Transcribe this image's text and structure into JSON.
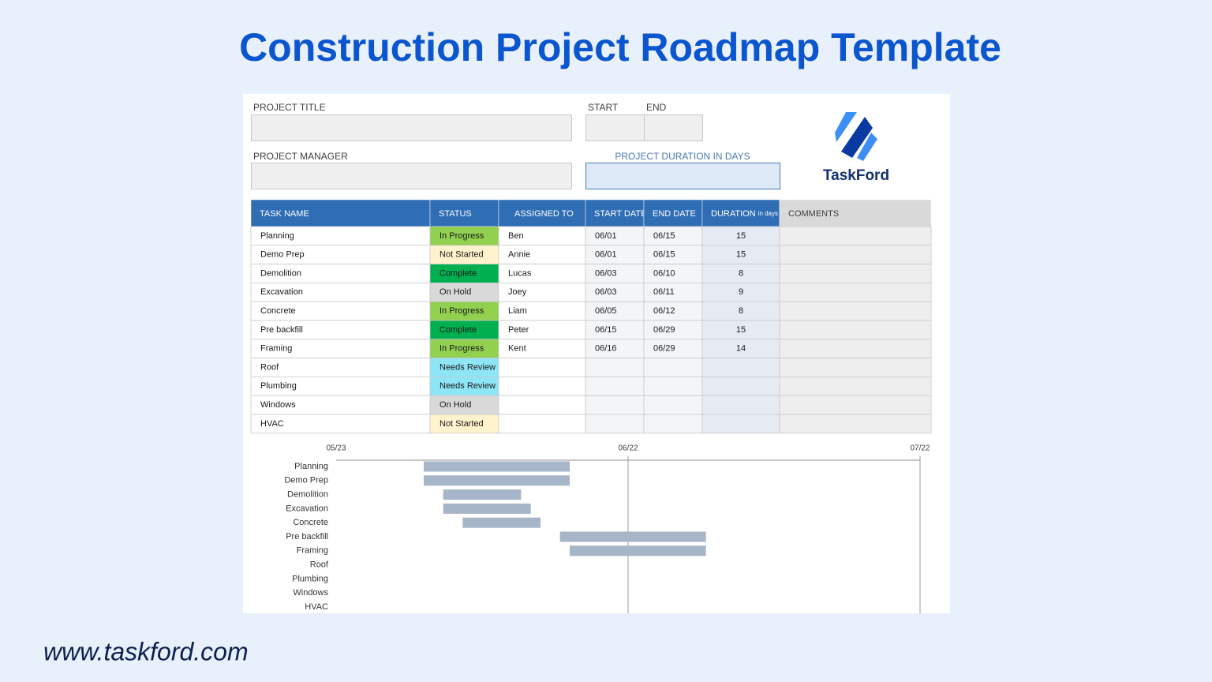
{
  "header": {
    "title": "Construction Project Roadmap Template"
  },
  "form": {
    "project_title": "PROJECT TITLE",
    "start": "START",
    "end": "END",
    "project_manager": "PROJECT MANAGER",
    "project_duration": "PROJECT DURATION IN DAYS"
  },
  "logo": {
    "text": "TaskFord"
  },
  "table": {
    "headers": [
      "TASK NAME",
      "STATUS",
      "ASSIGNED TO",
      "START DATE",
      "END DATE",
      "DURATION",
      "COMMENTS"
    ],
    "duration_unit": "in days",
    "status_colors": {
      "In Progress": "#92d050",
      "Not Started": "#fff2cc",
      "Complete": "#00b050",
      "On Hold": "#d9d9d9",
      "Needs Review": "#8ee5f5"
    },
    "rows": [
      [
        "Planning",
        "In Progress",
        "Ben",
        "06/01",
        "06/15",
        15
      ],
      [
        "Demo Prep",
        "Not Started",
        "Annie",
        "06/01",
        "06/15",
        15
      ],
      [
        "Demolition",
        "Complete",
        "Lucas",
        "06/03",
        "06/10",
        8
      ],
      [
        "Excavation",
        "On Hold",
        "Joey",
        "06/03",
        "06/11",
        9
      ],
      [
        "Concrete",
        "In Progress",
        "Liam",
        "06/05",
        "06/12",
        8
      ],
      [
        "Pre backfill",
        "Complete",
        "Peter",
        "06/15",
        "06/29",
        15
      ],
      [
        "Framing",
        "In Progress",
        "Kent",
        "06/16",
        "06/29",
        14
      ],
      [
        "Roof",
        "Needs Review",
        null,
        null,
        null,
        null
      ],
      [
        "Plumbing",
        "Needs Review",
        null,
        null,
        null,
        null
      ],
      [
        "Windows",
        "On Hold",
        null,
        null,
        null,
        null
      ],
      [
        "HVAC",
        "Not Started",
        null,
        null,
        null,
        null
      ]
    ]
  },
  "gantt": {
    "xticks": [
      "05/23",
      "06/22",
      "07/22"
    ],
    "bar_color": "#a7b5c9"
  },
  "footer": {
    "url": "www.taskford.com"
  }
}
